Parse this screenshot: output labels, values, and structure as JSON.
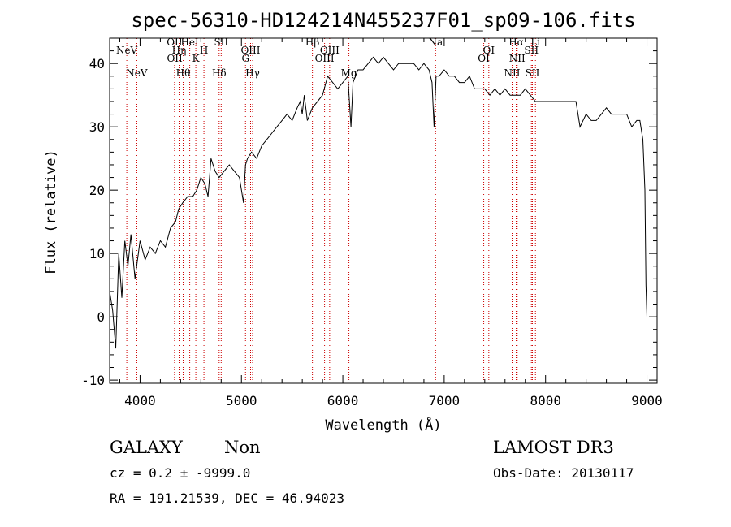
{
  "chart_data": {
    "type": "line",
    "title": "spec-56310-HD124214N455237F01_sp09-106.fits",
    "xlabel": "Wavelength (Å)",
    "ylabel": "Flux (relative)",
    "xlim": [
      3700,
      9100
    ],
    "ylim": [
      -10.5,
      44
    ],
    "xticks": [
      4000,
      5000,
      6000,
      7000,
      8000,
      9000
    ],
    "yticks": [
      -10,
      0,
      10,
      20,
      30,
      40
    ],
    "grid": false,
    "series": [
      {
        "x": [
          3700,
          3730,
          3760,
          3790,
          3820,
          3850,
          3880,
          3910,
          3950,
          4000,
          4050,
          4100,
          4150,
          4200,
          4250,
          4300,
          4350,
          4380,
          4420,
          4470,
          4520,
          4560,
          4600,
          4640,
          4670,
          4700,
          4740,
          4780,
          4830,
          4880,
          4930,
          4980,
          5020,
          5030,
          5040,
          5060,
          5100,
          5150,
          5200,
          5250,
          5300,
          5350,
          5400,
          5450,
          5500,
          5550,
          5580,
          5600,
          5620,
          5650,
          5700,
          5750,
          5800,
          5850,
          5900,
          5950,
          6000,
          6050,
          6080,
          6100,
          6150,
          6200,
          6250,
          6300,
          6350,
          6400,
          6450,
          6500,
          6550,
          6600,
          6650,
          6700,
          6750,
          6800,
          6850,
          6880,
          6900,
          6920,
          6950,
          7000,
          7050,
          7100,
          7150,
          7200,
          7250,
          7300,
          7350,
          7400,
          7450,
          7500,
          7550,
          7600,
          7650,
          7700,
          7750,
          7800,
          7850,
          7900,
          7950,
          8000,
          8050,
          8100,
          8150,
          8200,
          8250,
          8300,
          8340,
          8400,
          8450,
          8500,
          8550,
          8600,
          8650,
          8700,
          8750,
          8800,
          8850,
          8900,
          8930,
          8960,
          8980,
          8990,
          9000
        ],
        "y": [
          4,
          1,
          -5,
          10,
          3,
          12,
          8,
          13,
          6,
          12,
          9,
          11,
          10,
          12,
          11,
          14,
          15,
          17,
          18,
          19,
          19,
          20,
          22,
          21,
          19,
          25,
          23,
          22,
          23,
          24,
          23,
          22,
          18,
          21,
          24,
          25,
          26,
          25,
          27,
          28,
          29,
          30,
          31,
          32,
          31,
          33,
          34,
          32,
          35,
          31,
          33,
          34,
          35,
          38,
          37,
          36,
          37,
          38,
          30,
          37,
          39,
          39,
          40,
          41,
          40,
          41,
          40,
          39,
          40,
          40,
          40,
          40,
          39,
          40,
          39,
          37,
          30,
          38,
          38,
          39,
          38,
          38,
          37,
          37,
          38,
          36,
          36,
          36,
          35,
          36,
          35,
          36,
          35,
          35,
          35,
          36,
          35,
          34,
          34,
          34,
          34,
          34,
          34,
          34,
          34,
          34,
          30,
          32,
          31,
          31,
          32,
          33,
          32,
          32,
          32,
          32,
          30,
          31,
          31,
          28,
          20,
          5,
          0
        ]
      }
    ],
    "line_markers": [
      {
        "wavelength": 3869,
        "label": "NeV"
      },
      {
        "wavelength": 3968,
        "label": "NeV"
      },
      {
        "wavelength": 4340,
        "label": "OII"
      },
      {
        "wavelength": 4342,
        "label": "OII"
      },
      {
        "wavelength": 4385,
        "label": "Hη"
      },
      {
        "wavelength": 4425,
        "label": "Hθ"
      },
      {
        "wavelength": 4490,
        "label": "HeI"
      },
      {
        "wavelength": 4550,
        "label": "K"
      },
      {
        "wavelength": 4630,
        "label": "H"
      },
      {
        "wavelength": 4780,
        "label": "Hδ"
      },
      {
        "wavelength": 4800,
        "label": "SII"
      },
      {
        "wavelength": 5040,
        "label": "G"
      },
      {
        "wavelength": 5090,
        "label": "OIII"
      },
      {
        "wavelength": 5110,
        "label": "Hγ"
      },
      {
        "wavelength": 5700,
        "label": "Hβ"
      },
      {
        "wavelength": 5820,
        "label": "OIII"
      },
      {
        "wavelength": 5870,
        "label": "OIII"
      },
      {
        "wavelength": 6060,
        "label": "Mg"
      },
      {
        "wavelength": 6915,
        "label": "Na"
      },
      {
        "wavelength": 7390,
        "label": "OI"
      },
      {
        "wavelength": 7440,
        "label": "OI"
      },
      {
        "wavelength": 7670,
        "label": "NII"
      },
      {
        "wavelength": 7710,
        "label": "Hα"
      },
      {
        "wavelength": 7720,
        "label": "NII"
      },
      {
        "wavelength": 7860,
        "label": "SII"
      },
      {
        "wavelength": 7870,
        "label": "SII"
      },
      {
        "wavelength": 7900,
        "label": "Li"
      }
    ]
  },
  "footer": {
    "object_class": "GALAXY",
    "subclass": "Non",
    "survey": "LAMOST DR3",
    "cz_line": "cz = 0.2 ± -9999.0",
    "obs_date_line": "Obs-Date: 20130117",
    "radec_line": "RA = 191.21539, DEC =  46.94023"
  },
  "colors": {
    "spectrum": "#000000",
    "marker_line": "#cc0000",
    "axes": "#000000",
    "background": "#ffffff"
  }
}
